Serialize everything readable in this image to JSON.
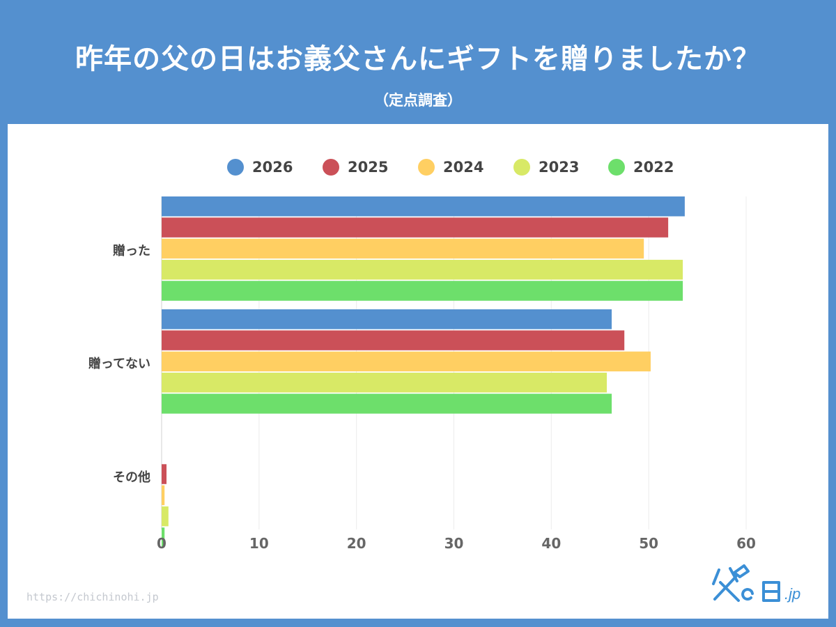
{
  "title": "昨年の父の日はお義父さんにギフトを贈りましたか？",
  "subtitle": "（定点調査）",
  "footer_url": "https://chichinohi.jp",
  "logo_text": "父の日.jp",
  "chart_data": {
    "type": "bar",
    "orientation": "horizontal",
    "categories": [
      "贈った",
      "贈ってない",
      "その他"
    ],
    "series": [
      {
        "name": "2026",
        "color": "#5490cf",
        "values": [
          53.7,
          46.2,
          0
        ]
      },
      {
        "name": "2025",
        "color": "#cb5058",
        "values": [
          52.0,
          47.5,
          0.5
        ]
      },
      {
        "name": "2024",
        "color": "#ffcf62",
        "values": [
          49.5,
          50.2,
          0.3
        ]
      },
      {
        "name": "2023",
        "color": "#d8e966",
        "values": [
          53.5,
          45.7,
          0.7
        ]
      },
      {
        "name": "2022",
        "color": "#6ddf6b",
        "values": [
          53.5,
          46.2,
          0.3
        ]
      }
    ],
    "xlim": [
      0,
      60
    ],
    "xticks": [
      0,
      10,
      20,
      30,
      40,
      50,
      60
    ],
    "grid": true,
    "legend_position": "top"
  }
}
